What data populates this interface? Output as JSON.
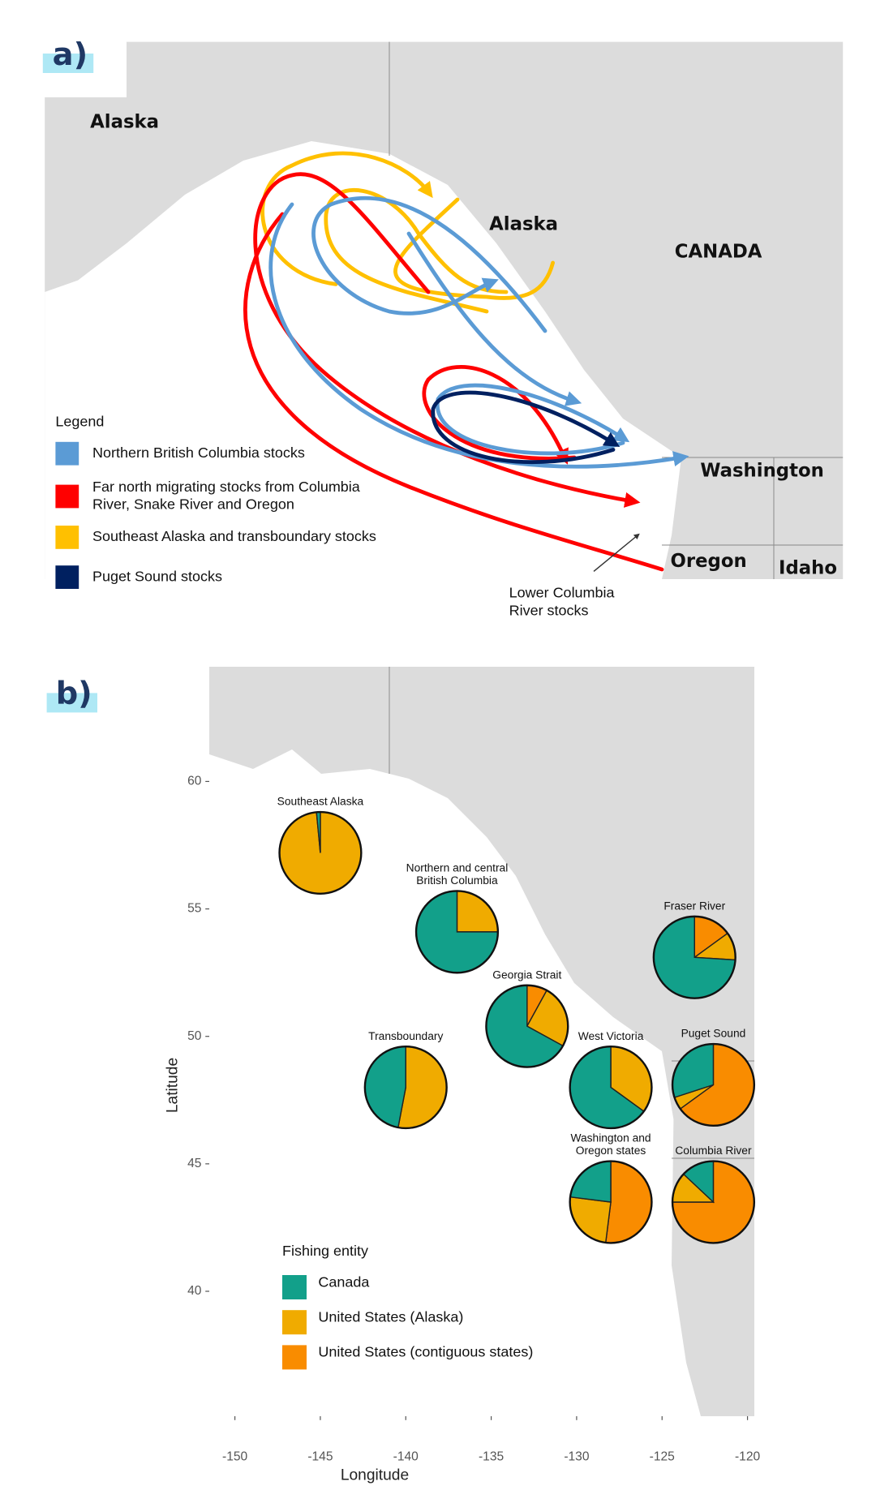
{
  "panel_a": {
    "label": "a)",
    "places": [
      "Alaska",
      "Alaska",
      "CANADA",
      "Washington",
      "Oregon",
      "Idaho"
    ],
    "annotation": [
      "Lower Columbia",
      "River stocks"
    ],
    "legend_title": "Legend",
    "legend": [
      {
        "lines": [
          "Northern British Columbia stocks"
        ],
        "color": "#5b9bd5"
      },
      {
        "lines": [
          "Far north migrating stocks from Columbia",
          "River, Snake River and Oregon"
        ],
        "color": "#ff0000"
      },
      {
        "lines": [
          "Southeast Alaska and transboundary stocks"
        ],
        "color": "#ffc000"
      },
      {
        "lines": [
          "Puget Sound stocks"
        ],
        "color": "#002060"
      }
    ]
  },
  "chart_data": {
    "type": "pie-map",
    "label": "b)",
    "xlabel": "Longitude",
    "ylabel": "Latitude",
    "xlim": [
      -151.5,
      -119.6
    ],
    "ylim": [
      35.1,
      64.5
    ],
    "xticks": [
      -150,
      -145,
      -140,
      -135,
      -130,
      -125,
      -120
    ],
    "yticks": [
      40,
      45,
      50,
      55,
      60
    ],
    "legend_title": "Fishing entity",
    "series": [
      {
        "name": "Canada",
        "color": "#12a08a"
      },
      {
        "name": "United States (Alaska)",
        "color": "#f0ab00"
      },
      {
        "name": "United States (contiguous states)",
        "color": "#f98c00"
      }
    ],
    "pies": [
      {
        "label": [
          "Southeast Alaska"
        ],
        "lon": -145.0,
        "lat": 57.2,
        "values": [
          1.5,
          98.5,
          0
        ]
      },
      {
        "label": [
          "Northern and central",
          "British Columbia"
        ],
        "lon": -137.0,
        "lat": 54.1,
        "values": [
          75,
          25,
          0
        ]
      },
      {
        "label": [
          "Fraser River"
        ],
        "lon": -123.1,
        "lat": 53.1,
        "values": [
          74,
          11,
          15
        ]
      },
      {
        "label": [
          "Georgia Strait"
        ],
        "lon": -132.9,
        "lat": 50.4,
        "values": [
          67,
          25,
          8
        ]
      },
      {
        "label": [
          "Transboundary"
        ],
        "lon": -140.0,
        "lat": 48.0,
        "values": [
          47,
          53,
          0
        ]
      },
      {
        "label": [
          "West Victoria"
        ],
        "lon": -128.0,
        "lat": 48.0,
        "values": [
          65,
          35,
          0
        ]
      },
      {
        "label": [
          "Puget Sound"
        ],
        "lon": -122.0,
        "lat": 48.1,
        "values": [
          30,
          5,
          65
        ]
      },
      {
        "label": [
          "Washington and",
          "Oregon states"
        ],
        "lon": -128.0,
        "lat": 43.5,
        "values": [
          23,
          25,
          52
        ]
      },
      {
        "label": [
          "Columbia River"
        ],
        "lon": -122.0,
        "lat": 43.5,
        "values": [
          13,
          12,
          75
        ]
      }
    ]
  }
}
